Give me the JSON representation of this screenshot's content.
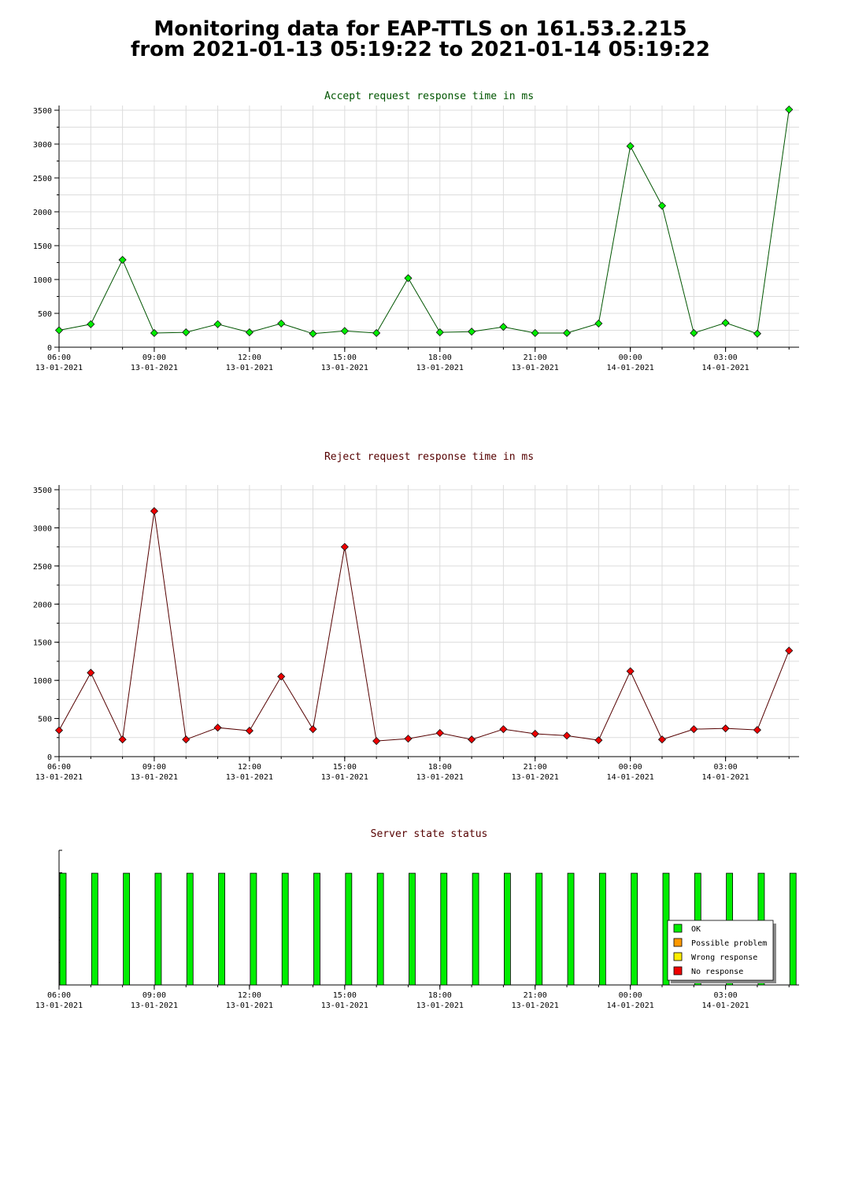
{
  "title": {
    "line1": "Monitoring data for EAP-TTLS on 161.53.2.215",
    "line2": "from 2021-01-13 05:19:22 to 2021-01-14 05:19:22"
  },
  "x_ticks": [
    {
      "time": "06:00",
      "date": "13-01-2021"
    },
    {
      "time": "09:00",
      "date": "13-01-2021"
    },
    {
      "time": "12:00",
      "date": "13-01-2021"
    },
    {
      "time": "15:00",
      "date": "13-01-2021"
    },
    {
      "time": "18:00",
      "date": "13-01-2021"
    },
    {
      "time": "21:00",
      "date": "13-01-2021"
    },
    {
      "time": "00:00",
      "date": "14-01-2021"
    },
    {
      "time": "03:00",
      "date": "14-01-2021"
    }
  ],
  "legend": {
    "items": [
      {
        "label": "OK",
        "color": "#00ee00"
      },
      {
        "label": "Possible problem",
        "color": "#ff9900"
      },
      {
        "label": "Wrong response",
        "color": "#ffee00"
      },
      {
        "label": "No response",
        "color": "#ee0000"
      }
    ]
  },
  "chart_data": [
    {
      "type": "line",
      "title": "Accept request response time in ms",
      "title_color": "#005500",
      "point_color": "#00ee00",
      "line_color": "#005500",
      "x_start": "2021-01-13 06:00",
      "x_end": "2021-01-14 05:19",
      "ylim": [
        0,
        3500
      ],
      "y_ticks": [
        0,
        500,
        1000,
        1500,
        2000,
        2500,
        3000,
        3500
      ],
      "x": [
        "2021-01-13 06:00",
        "2021-01-13 07:00",
        "2021-01-13 08:00",
        "2021-01-13 09:00",
        "2021-01-13 10:00",
        "2021-01-13 11:00",
        "2021-01-13 12:00",
        "2021-01-13 13:00",
        "2021-01-13 14:00",
        "2021-01-13 15:00",
        "2021-01-13 16:00",
        "2021-01-13 17:00",
        "2021-01-13 18:00",
        "2021-01-13 19:00",
        "2021-01-13 20:00",
        "2021-01-13 21:00",
        "2021-01-13 22:00",
        "2021-01-13 23:00",
        "2021-01-14 00:00",
        "2021-01-14 01:00",
        "2021-01-14 02:00",
        "2021-01-14 03:00",
        "2021-01-14 04:00",
        "2021-01-14 05:00"
      ],
      "values": [
        250,
        340,
        1290,
        210,
        220,
        340,
        220,
        350,
        200,
        240,
        210,
        1020,
        220,
        230,
        300,
        210,
        210,
        350,
        2970,
        2090,
        210,
        360,
        200,
        3510
      ],
      "grid": true
    },
    {
      "type": "line",
      "title": "Reject request response time in ms",
      "title_color": "#550000",
      "point_color": "#ee0000",
      "line_color": "#550000",
      "x_start": "2021-01-13 06:00",
      "x_end": "2021-01-14 05:19",
      "ylim": [
        0,
        3500
      ],
      "y_ticks": [
        0,
        500,
        1000,
        1500,
        2000,
        2500,
        3000,
        3500
      ],
      "x": [
        "2021-01-13 06:00",
        "2021-01-13 07:00",
        "2021-01-13 08:00",
        "2021-01-13 09:00",
        "2021-01-13 10:00",
        "2021-01-13 11:00",
        "2021-01-13 12:00",
        "2021-01-13 13:00",
        "2021-01-13 14:00",
        "2021-01-13 15:00",
        "2021-01-13 16:00",
        "2021-01-13 17:00",
        "2021-01-13 18:00",
        "2021-01-13 19:00",
        "2021-01-13 20:00",
        "2021-01-13 21:00",
        "2021-01-13 22:00",
        "2021-01-13 23:00",
        "2021-01-14 00:00",
        "2021-01-14 01:00",
        "2021-01-14 02:00",
        "2021-01-14 03:00",
        "2021-01-14 04:00",
        "2021-01-14 05:00"
      ],
      "values": [
        345,
        1100,
        225,
        3220,
        225,
        380,
        340,
        1050,
        360,
        2750,
        205,
        235,
        310,
        225,
        360,
        300,
        275,
        215,
        1120,
        225,
        360,
        370,
        350,
        1390
      ],
      "grid": true
    },
    {
      "type": "bar",
      "title": "Server state status",
      "title_color": "#550000",
      "x_start": "2021-01-13 06:00",
      "x_end": "2021-01-14 05:19",
      "x": [
        "2021-01-13 06:00",
        "2021-01-13 07:00",
        "2021-01-13 08:00",
        "2021-01-13 09:00",
        "2021-01-13 10:00",
        "2021-01-13 11:00",
        "2021-01-13 12:00",
        "2021-01-13 13:00",
        "2021-01-13 14:00",
        "2021-01-13 15:00",
        "2021-01-13 16:00",
        "2021-01-13 17:00",
        "2021-01-13 18:00",
        "2021-01-13 19:00",
        "2021-01-13 20:00",
        "2021-01-13 21:00",
        "2021-01-13 22:00",
        "2021-01-13 23:00",
        "2021-01-14 00:00",
        "2021-01-14 01:00",
        "2021-01-14 02:00",
        "2021-01-14 03:00",
        "2021-01-14 04:00",
        "2021-01-14 05:00"
      ],
      "status": [
        "OK",
        "OK",
        "OK",
        "OK",
        "OK",
        "OK",
        "OK",
        "OK",
        "OK",
        "OK",
        "OK",
        "OK",
        "OK",
        "OK",
        "OK",
        "OK",
        "OK",
        "OK",
        "OK",
        "OK",
        "OK",
        "OK",
        "OK",
        "OK"
      ],
      "level": 0.83,
      "legend_position": "bottom-right",
      "grid": false
    }
  ]
}
